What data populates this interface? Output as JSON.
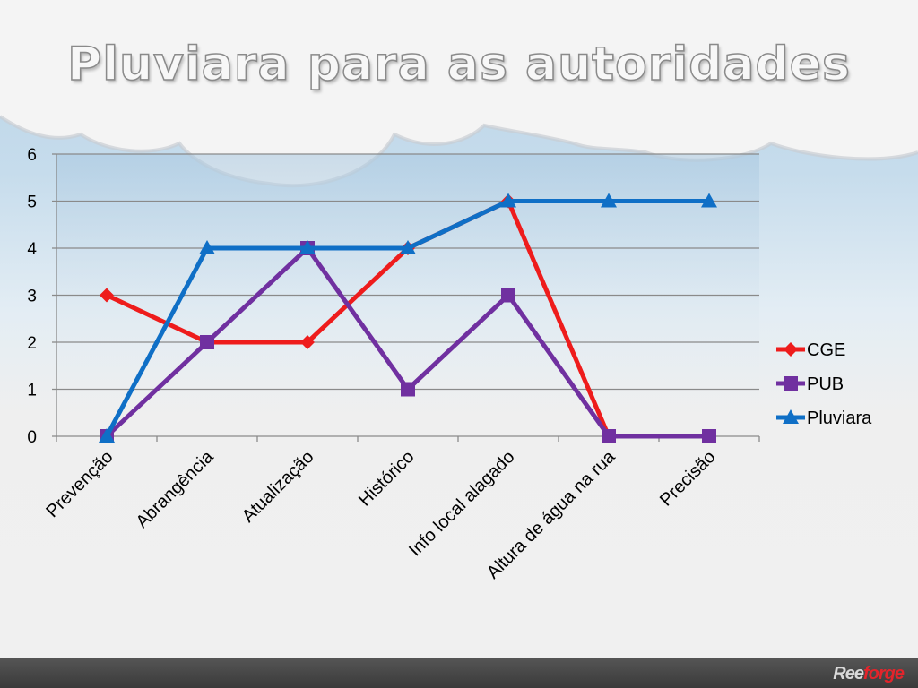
{
  "slide": {
    "title": "Pluviara para as autoridades"
  },
  "branding": {
    "logo_part1": "Ree",
    "logo_part2": "forge"
  },
  "chart_data": {
    "type": "line",
    "categories": [
      "Prevenção",
      "Abrangência",
      "Atualização",
      "Histórico",
      "Info local alagado",
      "Altura de água na rua",
      "Precisão"
    ],
    "series": [
      {
        "name": "CGE",
        "values": [
          3,
          2,
          2,
          4,
          5,
          0,
          null
        ],
        "color": "#ee1c1c",
        "marker": "diamond"
      },
      {
        "name": "PUB",
        "values": [
          0,
          2,
          4,
          1,
          3,
          0,
          0
        ],
        "color": "#7030a0",
        "marker": "square"
      },
      {
        "name": "Pluviara",
        "values": [
          0,
          4,
          4,
          4,
          5,
          5,
          5
        ],
        "color": "#0f6fc6",
        "marker": "triangle"
      }
    ],
    "ylim": [
      0,
      6
    ],
    "yticks": [
      "0",
      "1",
      "2",
      "3",
      "4",
      "5",
      "6"
    ],
    "grid": true,
    "legend": "right"
  }
}
